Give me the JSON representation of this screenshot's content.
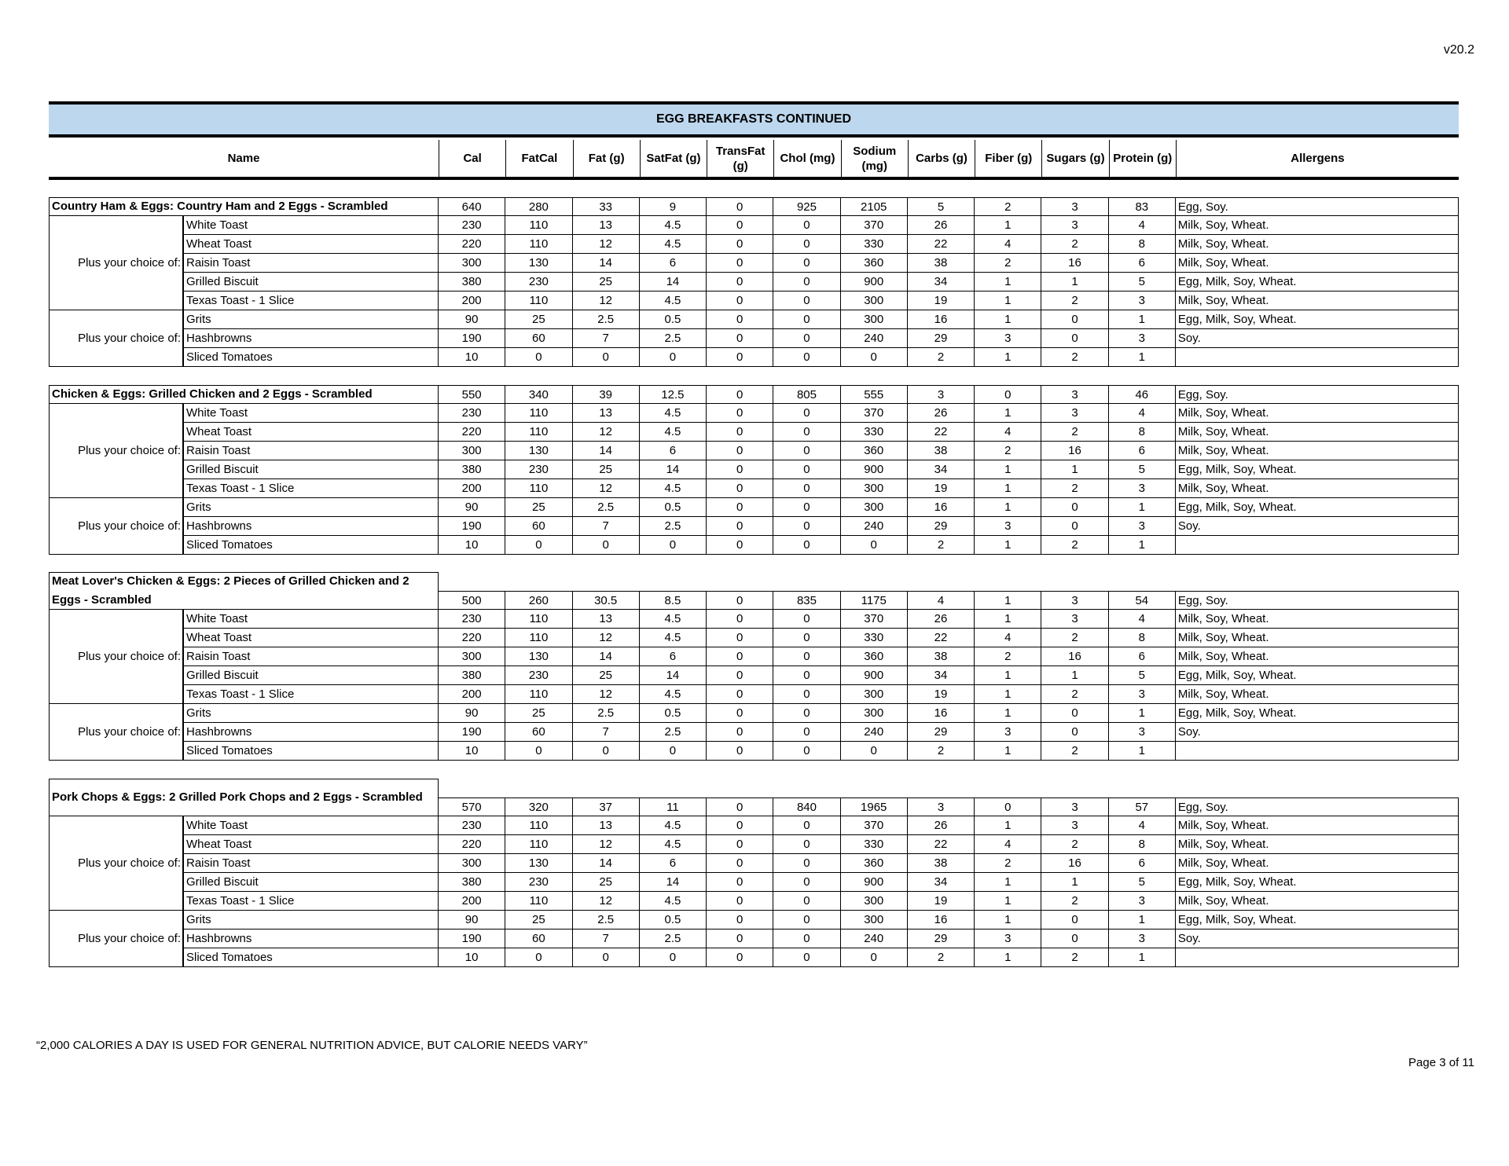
{
  "version": "v20.2",
  "title": "EGG BREAKFASTS CONTINUED",
  "columns": [
    "Name",
    "Cal",
    "FatCal",
    "Fat (g)",
    "SatFat (g)",
    "TransFat (g)",
    "Chol (mg)",
    "Sodium (mg)",
    "Carbs (g)",
    "Fiber (g)",
    "Sugars (g)",
    "Protein (g)",
    "Allergens"
  ],
  "group_label": "Plus your choice of:",
  "sections": [
    {
      "name": "Country Ham & Eggs: Country Ham and 2 Eggs - Scrambled",
      "values": [
        "640",
        "280",
        "33",
        "9",
        "0",
        "925",
        "2105",
        "5",
        "2",
        "3",
        "83"
      ],
      "allergens": "Egg, Soy."
    },
    {
      "name": "Chicken & Eggs: Grilled Chicken and 2 Eggs - Scrambled",
      "values": [
        "550",
        "340",
        "39",
        "12.5",
        "0",
        "805",
        "555",
        "3",
        "0",
        "3",
        "46"
      ],
      "allergens": "Egg, Soy."
    },
    {
      "name": "Meat Lover's Chicken & Eggs: 2 Pieces of Grilled Chicken and 2 Eggs - Scrambled",
      "values": [
        "500",
        "260",
        "30.5",
        "8.5",
        "0",
        "835",
        "1175",
        "4",
        "1",
        "3",
        "54"
      ],
      "allergens": "Egg, Soy."
    },
    {
      "name": "Pork Chops & Eggs: 2 Grilled Pork Chops and 2 Eggs - Scrambled",
      "values": [
        "570",
        "320",
        "37",
        "11",
        "0",
        "840",
        "1965",
        "3",
        "0",
        "3",
        "57"
      ],
      "allergens": "Egg, Soy."
    }
  ],
  "bread_options": [
    {
      "name": "White Toast",
      "values": [
        "230",
        "110",
        "13",
        "4.5",
        "0",
        "0",
        "370",
        "26",
        "1",
        "3",
        "4"
      ],
      "allergens": "Milk, Soy, Wheat."
    },
    {
      "name": "Wheat Toast",
      "values": [
        "220",
        "110",
        "12",
        "4.5",
        "0",
        "0",
        "330",
        "22",
        "4",
        "2",
        "8"
      ],
      "allergens": "Milk, Soy, Wheat."
    },
    {
      "name": "Raisin Toast",
      "values": [
        "300",
        "130",
        "14",
        "6",
        "0",
        "0",
        "360",
        "38",
        "2",
        "16",
        "6"
      ],
      "allergens": "Milk, Soy, Wheat."
    },
    {
      "name": "Grilled Biscuit",
      "values": [
        "380",
        "230",
        "25",
        "14",
        "0",
        "0",
        "900",
        "34",
        "1",
        "1",
        "5"
      ],
      "allergens": "Egg, Milk, Soy, Wheat."
    },
    {
      "name": "Texas Toast - 1 Slice",
      "values": [
        "200",
        "110",
        "12",
        "4.5",
        "0",
        "0",
        "300",
        "19",
        "1",
        "2",
        "3"
      ],
      "allergens": "Milk, Soy, Wheat."
    }
  ],
  "side_options": [
    {
      "name": "Grits",
      "values": [
        "90",
        "25",
        "2.5",
        "0.5",
        "0",
        "0",
        "300",
        "16",
        "1",
        "0",
        "1"
      ],
      "allergens": "Egg, Milk, Soy, Wheat."
    },
    {
      "name": "Hashbrowns",
      "values": [
        "190",
        "60",
        "7",
        "2.5",
        "0",
        "0",
        "240",
        "29",
        "3",
        "0",
        "3"
      ],
      "allergens": "Soy."
    },
    {
      "name": "Sliced Tomatoes",
      "values": [
        "10",
        "0",
        "0",
        "0",
        "0",
        "0",
        "0",
        "2",
        "1",
        "2",
        "1"
      ],
      "allergens": ""
    }
  ],
  "footer_note": "“2,000 CALORIES A DAY IS USED FOR GENERAL NUTRITION ADVICE, BUT CALORIE NEEDS VARY”",
  "page_label": "Page 3 of 11"
}
